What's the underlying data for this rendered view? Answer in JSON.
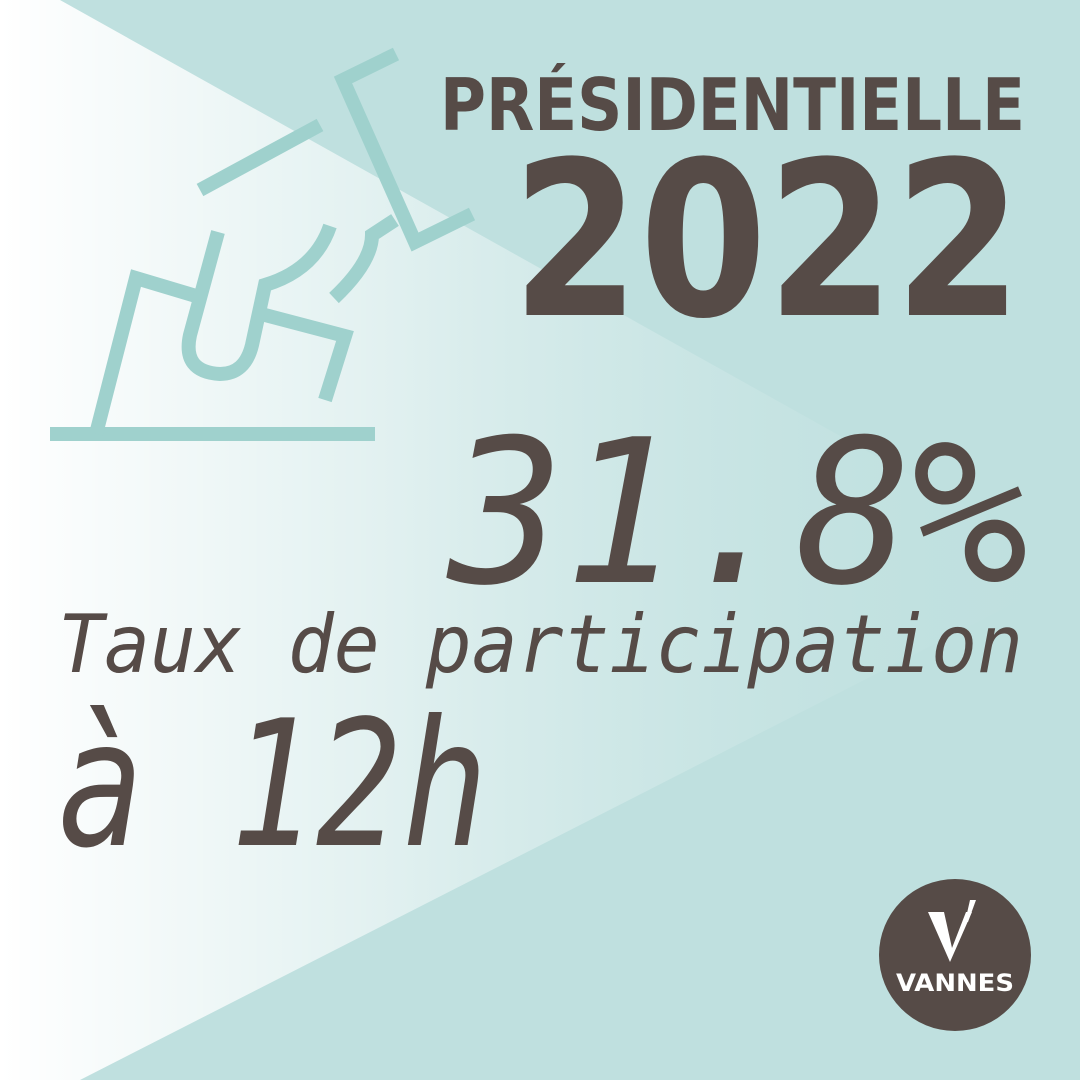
{
  "header": {
    "title": "PRÉSIDENTIELLE",
    "year": "2022"
  },
  "figure": {
    "value": "31.8%",
    "caption": "Taux de participation",
    "time": "à 12h"
  },
  "logo": {
    "name": "VANNES"
  }
}
